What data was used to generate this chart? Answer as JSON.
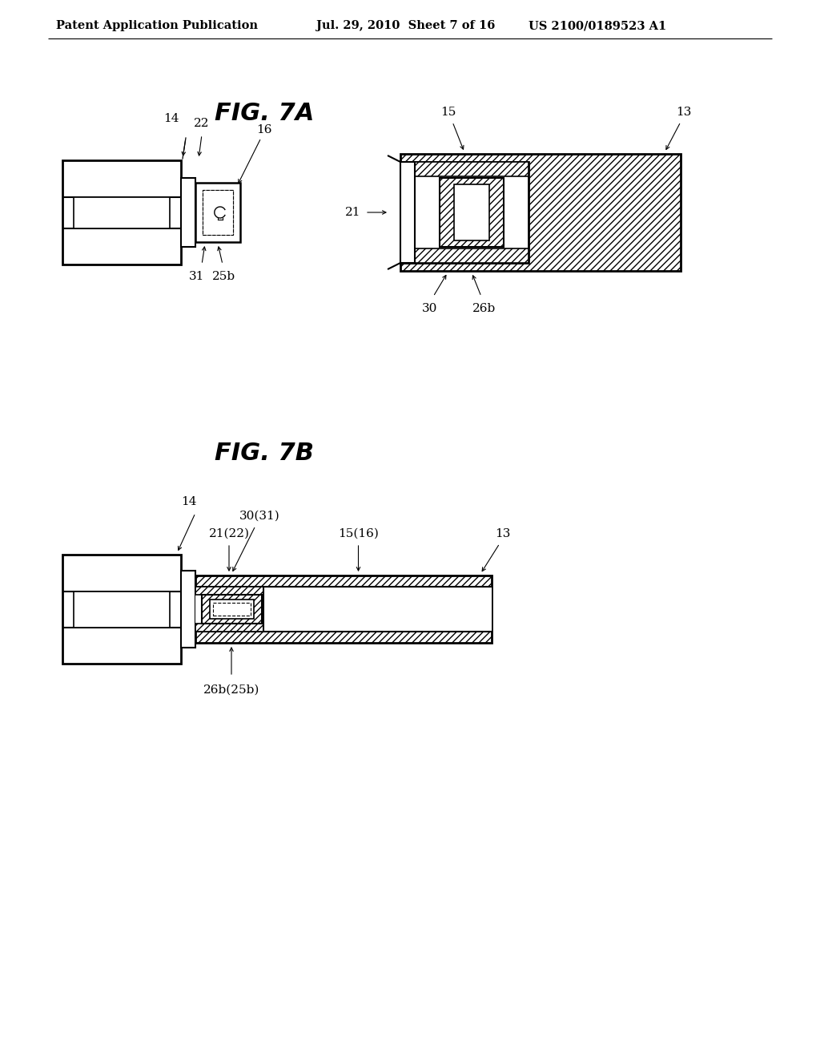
{
  "header_left": "Patent Application Publication",
  "header_mid": "Jul. 29, 2010  Sheet 7 of 16",
  "header_right": "US 2100/0189523 A1",
  "fig7a_title": "FIG. 7A",
  "fig7b_title": "FIG. 7B",
  "bg_color": "#ffffff",
  "line_color": "#000000",
  "header_fontsize": 10.5,
  "title_fontsize": 22
}
